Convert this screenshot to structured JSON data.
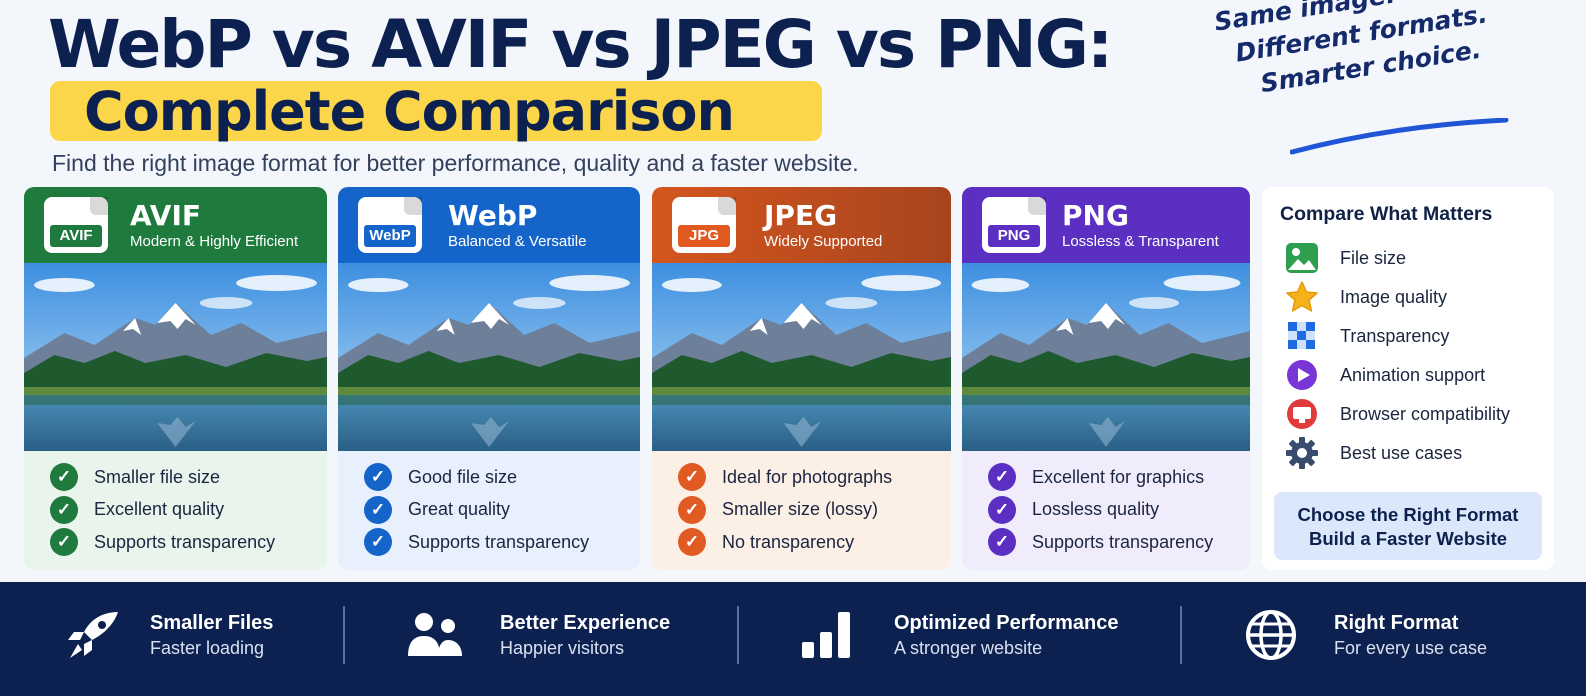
{
  "header": {
    "title": "WebP vs AVIF vs JPEG vs PNG:",
    "subtitle": "Complete Comparison",
    "tagline": "Find the right image format for better performance, quality and a faster website.",
    "handwritten": [
      "Same image.",
      "Different formats.",
      "Smarter choice."
    ]
  },
  "cards": [
    {
      "badge": "AVIF",
      "name": "AVIF",
      "desc": "Modern & Highly Efficient",
      "color": "#1e7a3d",
      "light": "#e9f5ec",
      "check_color": "#1e7a3d",
      "features": [
        "Smaller file size",
        "Excellent quality",
        "Supports transparency"
      ]
    },
    {
      "badge": "WebP",
      "name": "WebP",
      "desc": "Balanced & Versatile",
      "color": "#1564c9",
      "light": "#e7f0fc",
      "check_color": "#1564c9",
      "features": [
        "Good file size",
        "Great quality",
        "Supports transparency"
      ]
    },
    {
      "badge": "JPG",
      "name": "JPEG",
      "desc": "Widely Supported",
      "color": "#c4501c",
      "light": "#fbefe6",
      "check_color": "#e05a22",
      "features": [
        "Ideal for photographs",
        "Smaller size (lossy)",
        "No transparency"
      ]
    },
    {
      "badge": "PNG",
      "name": "PNG",
      "desc": "Lossless & Transparent",
      "color": "#5a2fc2",
      "light": "#f1ecfb",
      "check_color": "#5a2fc2",
      "features": [
        "Excellent for graphics",
        "Lossless quality",
        "Supports transparency"
      ]
    }
  ],
  "compare": {
    "title": "Compare What Matters",
    "items": [
      {
        "label": "File size",
        "icon": "image-icon"
      },
      {
        "label": "Image quality",
        "icon": "star-icon"
      },
      {
        "label": "Transparency",
        "icon": "checkerboard-icon"
      },
      {
        "label": "Animation support",
        "icon": "play-icon"
      },
      {
        "label": "Browser compatibility",
        "icon": "monitor-icon"
      },
      {
        "label": "Best use cases",
        "icon": "gear-icon"
      }
    ],
    "cta_line1": "Choose the Right Format",
    "cta_line2": "Build a Faster Website"
  },
  "footer": [
    {
      "title": "Smaller Files",
      "sub": "Faster loading",
      "icon": "rocket-icon"
    },
    {
      "title": "Better Experience",
      "sub": "Happier visitors",
      "icon": "users-icon"
    },
    {
      "title": "Optimized Performance",
      "sub": "A stronger website",
      "icon": "bar-chart-icon"
    },
    {
      "title": "Right Format",
      "sub": "For every use case",
      "icon": "globe-icon"
    }
  ],
  "colors": {
    "navy": "#0d2150",
    "highlight": "#fbd64a",
    "handwriting_blue": "#1f55d6"
  }
}
